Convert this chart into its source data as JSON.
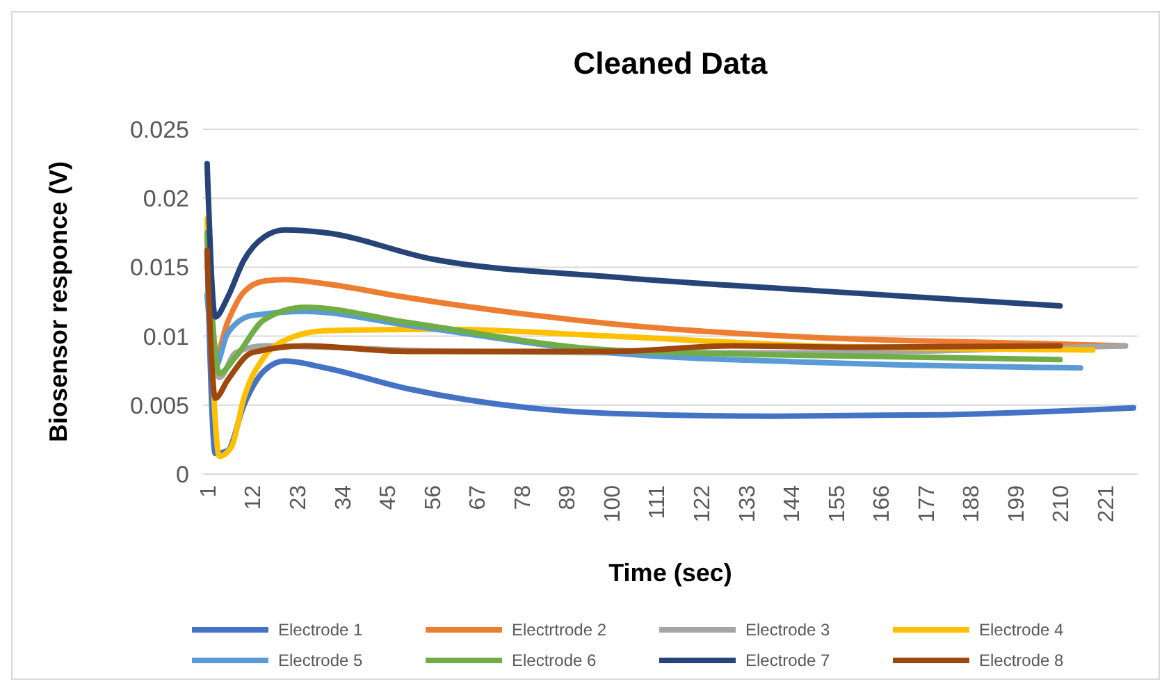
{
  "chart_data": {
    "type": "line",
    "title": "Cleaned Data",
    "xlabel": "Time (sec)",
    "ylabel": "Biosensor responce (V)",
    "xlim": [
      0,
      229
    ],
    "xticks": [
      1,
      12,
      23,
      34,
      45,
      56,
      67,
      78,
      89,
      100,
      111,
      122,
      133,
      144,
      155,
      166,
      177,
      188,
      199,
      210,
      221
    ],
    "ylim": [
      0,
      0.025
    ],
    "yticks": [
      0,
      0.005,
      0.01,
      0.015,
      0.02,
      0.025
    ],
    "grid": "y",
    "legend": "bottom",
    "line_style": "solid",
    "series": [
      {
        "name": "Electrode 1",
        "color": "#4472c4",
        "x": [
          1,
          3,
          6,
          10,
          15,
          20,
          30,
          50,
          80,
          100,
          140,
          180,
          228
        ],
        "values": [
          0.016,
          0.0015,
          0.0017,
          0.005,
          0.0075,
          0.0082,
          0.0077,
          0.0062,
          0.0048,
          0.0044,
          0.0042,
          0.0043,
          0.0048
        ]
      },
      {
        "name": "Electrtrode 2",
        "color": "#ed7d31",
        "x": [
          1,
          3,
          6,
          10,
          15,
          20,
          30,
          50,
          100,
          150,
          200,
          226
        ],
        "values": [
          0.017,
          0.0085,
          0.011,
          0.0132,
          0.014,
          0.0141,
          0.0138,
          0.0128,
          0.0109,
          0.0099,
          0.0095,
          0.0093
        ]
      },
      {
        "name": "Electrode 3",
        "color": "#a5a5a5",
        "x": [
          1,
          4,
          8,
          15,
          30,
          60,
          100,
          150,
          200,
          226
        ],
        "values": [
          0.016,
          0.007,
          0.0088,
          0.0093,
          0.0092,
          0.0089,
          0.0088,
          0.0088,
          0.0091,
          0.0093
        ]
      },
      {
        "name": "Electrode 4",
        "color": "#ffc000",
        "x": [
          1,
          4,
          7,
          10,
          15,
          20,
          30,
          60,
          100,
          150,
          218
        ],
        "values": [
          0.0185,
          0.0013,
          0.002,
          0.0055,
          0.0085,
          0.0097,
          0.0104,
          0.0105,
          0.01,
          0.0093,
          0.009
        ]
      },
      {
        "name": "Electrode 5",
        "color": "#5b9bd5",
        "x": [
          1,
          3,
          6,
          12,
          25,
          50,
          100,
          150,
          215
        ],
        "values": [
          0.013,
          0.0078,
          0.0102,
          0.0115,
          0.0118,
          0.0108,
          0.0088,
          0.0081,
          0.0077
        ]
      },
      {
        "name": "Electrode 6",
        "color": "#70ad47",
        "x": [
          1,
          4,
          8,
          15,
          25,
          50,
          100,
          150,
          210
        ],
        "values": [
          0.0175,
          0.0073,
          0.0085,
          0.0112,
          0.0121,
          0.011,
          0.009,
          0.0086,
          0.0083
        ]
      },
      {
        "name": "Electrode 7",
        "color": "#264478",
        "x": [
          1,
          3,
          6,
          10,
          15,
          20,
          30,
          56,
          100,
          150,
          210
        ],
        "values": [
          0.0225,
          0.0114,
          0.0128,
          0.0155,
          0.0172,
          0.0177,
          0.0175,
          0.0156,
          0.0143,
          0.0133,
          0.0122
        ]
      },
      {
        "name": "Electrode 8",
        "color": "#9e480e",
        "x": [
          1,
          3,
          6,
          12,
          25,
          50,
          100,
          130,
          160,
          210
        ],
        "values": [
          0.0162,
          0.0055,
          0.0068,
          0.0088,
          0.0093,
          0.0089,
          0.0089,
          0.0093,
          0.0092,
          0.0093
        ]
      }
    ]
  }
}
